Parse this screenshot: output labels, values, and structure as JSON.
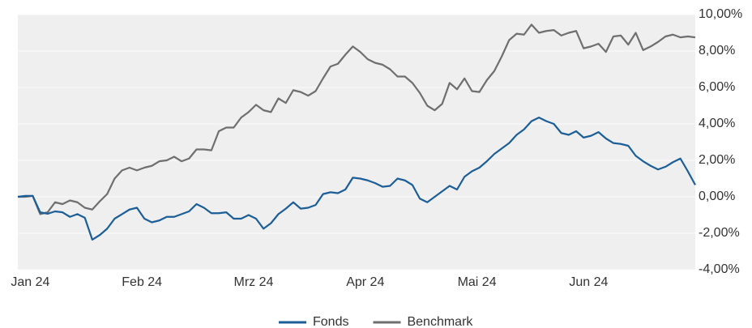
{
  "chart_data": {
    "type": "line",
    "categories": [
      null,
      null,
      "Jan 24",
      null,
      null,
      null,
      null,
      null,
      null,
      null,
      null,
      null,
      null,
      null,
      null,
      null,
      null,
      "Feb 24",
      null,
      null,
      null,
      null,
      null,
      null,
      null,
      null,
      null,
      null,
      null,
      null,
      null,
      null,
      "Mrz 24",
      null,
      null,
      null,
      null,
      null,
      null,
      null,
      null,
      null,
      null,
      null,
      null,
      null,
      null,
      "Apr 24",
      null,
      null,
      null,
      null,
      null,
      null,
      null,
      null,
      null,
      null,
      null,
      null,
      null,
      null,
      "Mai 24",
      null,
      null,
      null,
      null,
      null,
      null,
      null,
      null,
      null,
      null,
      null,
      null,
      null,
      null,
      "Jun 24",
      null,
      null,
      null,
      null,
      null,
      null,
      null,
      null,
      null,
      null,
      null,
      null,
      null,
      null
    ],
    "series": [
      {
        "name": "Fonds",
        "color": "#1c5e98",
        "values": [
          0,
          0.05,
          0.05,
          -0.85,
          -0.93,
          -0.8,
          -0.85,
          -1.1,
          -0.95,
          -1.15,
          -2.35,
          -2.1,
          -1.75,
          -1.2,
          -0.95,
          -0.7,
          -0.6,
          -1.2,
          -1.4,
          -1.3,
          -1.1,
          -1.1,
          -0.95,
          -0.8,
          -0.4,
          -0.6,
          -0.9,
          -0.9,
          -0.85,
          -1.2,
          -1.2,
          -1.0,
          -1.2,
          -1.75,
          -1.45,
          -0.95,
          -0.65,
          -0.3,
          -0.65,
          -0.6,
          -0.45,
          0.15,
          0.25,
          0.2,
          0.4,
          1.05,
          1.0,
          0.9,
          0.75,
          0.55,
          0.6,
          1.0,
          0.9,
          0.65,
          -0.1,
          -0.3,
          0,
          0.3,
          0.6,
          0.4,
          1.1,
          1.4,
          1.6,
          1.95,
          2.35,
          2.65,
          2.95,
          3.4,
          3.7,
          4.15,
          4.35,
          4.15,
          4.0,
          3.5,
          3.4,
          3.6,
          3.25,
          3.35,
          3.55,
          3.2,
          2.95,
          2.9,
          2.8,
          2.25,
          1.95,
          1.7,
          1.5,
          1.65,
          1.9,
          2.1,
          1.4,
          0.65
        ]
      },
      {
        "name": "Benchmark",
        "color": "#6f6f72",
        "values": [
          0,
          0,
          0.05,
          -0.95,
          -0.85,
          -0.3,
          -0.4,
          -0.2,
          -0.3,
          -0.6,
          -0.7,
          -0.25,
          0.15,
          1.0,
          1.45,
          1.6,
          1.45,
          1.6,
          1.7,
          1.95,
          2.0,
          2.2,
          1.95,
          2.1,
          2.6,
          2.6,
          2.55,
          3.6,
          3.8,
          3.8,
          4.35,
          4.65,
          5.05,
          4.75,
          4.65,
          5.4,
          5.15,
          5.85,
          5.75,
          5.55,
          5.8,
          6.5,
          7.15,
          7.3,
          7.8,
          8.25,
          7.95,
          7.55,
          7.35,
          7.25,
          7.0,
          6.6,
          6.6,
          6.25,
          5.7,
          5.0,
          4.75,
          5.1,
          6.25,
          5.9,
          6.5,
          5.8,
          5.75,
          6.4,
          6.9,
          7.7,
          8.6,
          8.95,
          8.9,
          9.45,
          9.0,
          9.1,
          9.15,
          8.85,
          9.0,
          9.1,
          8.15,
          8.25,
          8.4,
          7.95,
          8.8,
          8.85,
          8.35,
          9.0,
          8.05,
          8.25,
          8.5,
          8.8,
          8.9,
          8.75,
          8.8,
          8.75
        ]
      }
    ],
    "ylim": [
      -4,
      10
    ],
    "yticks": [
      {
        "value": -4,
        "label": "-4,00%"
      },
      {
        "value": -2,
        "label": "-2,00%"
      },
      {
        "value": 0,
        "label": "0,00%"
      },
      {
        "value": 2,
        "label": "2,00%"
      },
      {
        "value": 4,
        "label": "4,00%"
      },
      {
        "value": 6,
        "label": "6,00%"
      },
      {
        "value": 8,
        "label": "8,00%"
      },
      {
        "value": 10,
        "label": "10,00%"
      }
    ],
    "grid": true,
    "legend": "bottom"
  }
}
